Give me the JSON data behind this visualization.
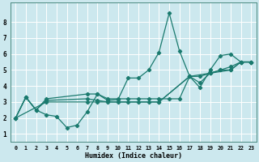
{
  "title": "",
  "xlabel": "Humidex (Indice chaleur)",
  "bg_color": "#cce8ee",
  "grid_color": "#ffffff",
  "line_color": "#1a7a6e",
  "xlim": [
    -0.5,
    23.5
  ],
  "ylim": [
    0.5,
    9.2
  ],
  "yticks": [
    1,
    2,
    3,
    4,
    5,
    6,
    7,
    8
  ],
  "xticks": [
    0,
    1,
    2,
    3,
    4,
    5,
    6,
    7,
    8,
    9,
    10,
    11,
    12,
    13,
    14,
    15,
    16,
    17,
    18,
    19,
    20,
    21,
    22,
    23
  ],
  "line1_x": [
    0,
    1,
    2,
    3,
    4,
    5,
    6,
    7,
    8,
    9,
    10,
    11,
    12,
    13,
    14,
    15,
    16,
    17,
    18,
    19,
    20,
    21,
    22,
    23
  ],
  "line1_y": [
    2.0,
    3.3,
    2.5,
    2.2,
    2.1,
    1.4,
    1.55,
    2.4,
    3.5,
    3.1,
    3.15,
    4.5,
    4.5,
    5.0,
    6.1,
    8.55,
    6.2,
    4.6,
    3.9,
    5.0,
    5.9,
    6.0,
    5.5,
    5.5
  ],
  "line2_x": [
    0,
    1,
    2,
    3,
    7,
    8,
    9,
    10,
    11,
    12,
    13,
    14,
    15,
    16,
    17,
    18,
    19,
    20,
    21,
    22,
    23
  ],
  "line2_y": [
    2.0,
    3.3,
    2.5,
    3.2,
    3.5,
    3.5,
    3.2,
    3.2,
    3.2,
    3.2,
    3.2,
    3.2,
    3.2,
    3.2,
    4.6,
    4.6,
    4.8,
    5.0,
    5.2,
    5.5,
    5.5
  ],
  "line3_x": [
    0,
    1,
    2,
    3,
    7,
    8,
    9,
    10,
    11,
    12,
    13,
    14,
    17,
    18,
    19,
    20,
    21,
    22,
    23
  ],
  "line3_y": [
    2.0,
    3.3,
    2.5,
    3.1,
    3.2,
    3.1,
    3.0,
    3.0,
    3.0,
    3.0,
    3.0,
    3.0,
    4.6,
    4.2,
    4.8,
    5.0,
    5.0,
    5.5,
    5.5
  ],
  "line4_x": [
    0,
    3,
    7,
    8,
    14,
    17,
    19,
    21,
    22,
    23
  ],
  "line4_y": [
    2.0,
    3.0,
    3.0,
    3.0,
    3.0,
    4.6,
    4.8,
    5.0,
    5.5,
    5.5
  ]
}
